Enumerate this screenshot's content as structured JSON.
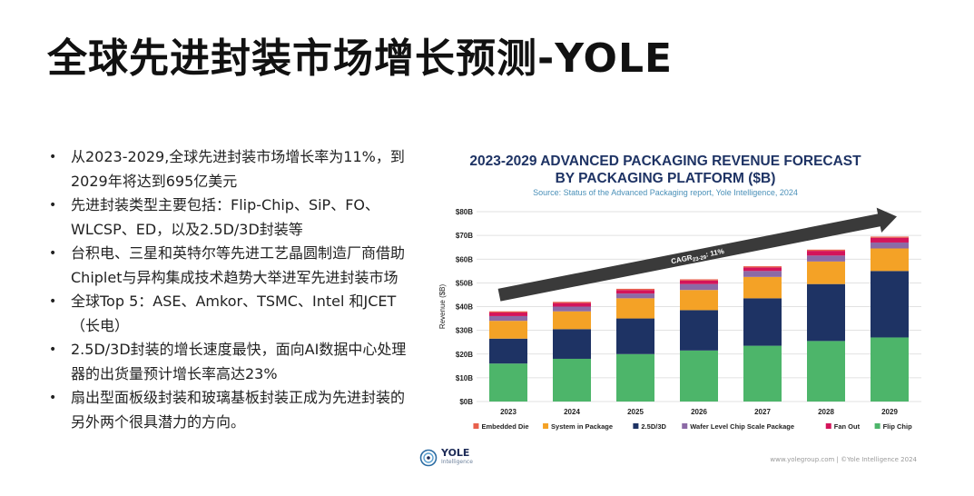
{
  "slide": {
    "title": "全球先进封装市场增长预测-YOLE",
    "bullets": [
      "从2023-2029,全球先进封装市场增长率为11%，到2029年将达到695亿美元",
      "先进封装类型主要包括：Flip-Chip、SiP、FO、WLCSP、ED，以及2.5D/3D封装等",
      "台积电、三星和英特尔等先进工艺晶圆制造厂商借助Chiplet与异构集成技术趋势大举进军先进封装市场",
      "全球Top 5：ASE、Amkor、TSMC、Intel 和JCET（长电）",
      "2.5D/3D封装的增长速度最快，面向AI数据中心处理器的出货量预计增长率高达23%",
      "扇出型面板级封装和玻璃基板封装正成为先进封装的另外两个很具潜力的方向。"
    ]
  },
  "footer": {
    "logo_text": "YOLE",
    "logo_sub": "Intelligence",
    "credit": "www.yolegroup.com | ©Yole Intelligence 2024"
  },
  "chart_data": {
    "type": "bar",
    "stacked": true,
    "title_line1": "2023-2029 ADVANCED PACKAGING REVENUE FORECAST",
    "title_line2": "BY PACKAGING PLATFORM ($B)",
    "subtitle": "Source: Status of the Advanced Packaging report, Yole Intelligence, 2024",
    "ylabel": "Revenue ($B)",
    "xlabel": "",
    "categories": [
      "2023",
      "2024",
      "2025",
      "2026",
      "2027",
      "2028",
      "2029"
    ],
    "ylim": [
      0,
      80
    ],
    "yticks": [
      {
        "value": 0,
        "label": "$0B"
      },
      {
        "value": 10,
        "label": "$10B"
      },
      {
        "value": 20,
        "label": "$20B"
      },
      {
        "value": 30,
        "label": "$30B"
      },
      {
        "value": 40,
        "label": "$40B"
      },
      {
        "value": 50,
        "label": "$50B"
      },
      {
        "value": 60,
        "label": "$60B"
      },
      {
        "value": 70,
        "label": "$70B"
      },
      {
        "value": 80,
        "label": "$80B"
      }
    ],
    "series": [
      {
        "name": "Flip Chip",
        "color": "#4db56a",
        "values": [
          16,
          18,
          20,
          21.5,
          23.5,
          25.5,
          27
        ]
      },
      {
        "name": "2.5D/3D",
        "color": "#1e3364",
        "values": [
          10.5,
          12.5,
          15,
          17,
          20,
          24,
          28
        ]
      },
      {
        "name": "System in Package",
        "color": "#f4a226",
        "values": [
          7.5,
          7.5,
          8.5,
          8.5,
          9,
          9.5,
          9.5
        ]
      },
      {
        "name": "Wafer Level Chip Scale Package",
        "color": "#8c6aa6",
        "values": [
          2,
          2,
          2,
          2.5,
          2.5,
          2.5,
          2.5
        ]
      },
      {
        "name": "Fan Out",
        "color": "#d4145a",
        "values": [
          1.5,
          1.5,
          1.5,
          1.5,
          1.5,
          2,
          2
        ]
      },
      {
        "name": "Embedded Die",
        "color": "#e8604c",
        "values": [
          0.5,
          0.5,
          0.5,
          0.5,
          0.5,
          0.5,
          0.5
        ]
      }
    ],
    "legend_order": [
      "Embedded Die",
      "System in Package",
      "2.5D/3D",
      "Wafer Level Chip Scale Package",
      "Fan Out",
      "Flip Chip"
    ],
    "legend_position": "bottom",
    "grid": true,
    "annotation": {
      "prefix": "CAGR",
      "sub": "23-29",
      "suffix": ": 11%"
    },
    "colors": {
      "title": "#1e3364",
      "subtitle": "#4a90b8",
      "axis_text": "#222222",
      "grid": "#d8d8d8",
      "arrow": "#3a3a3a"
    }
  }
}
